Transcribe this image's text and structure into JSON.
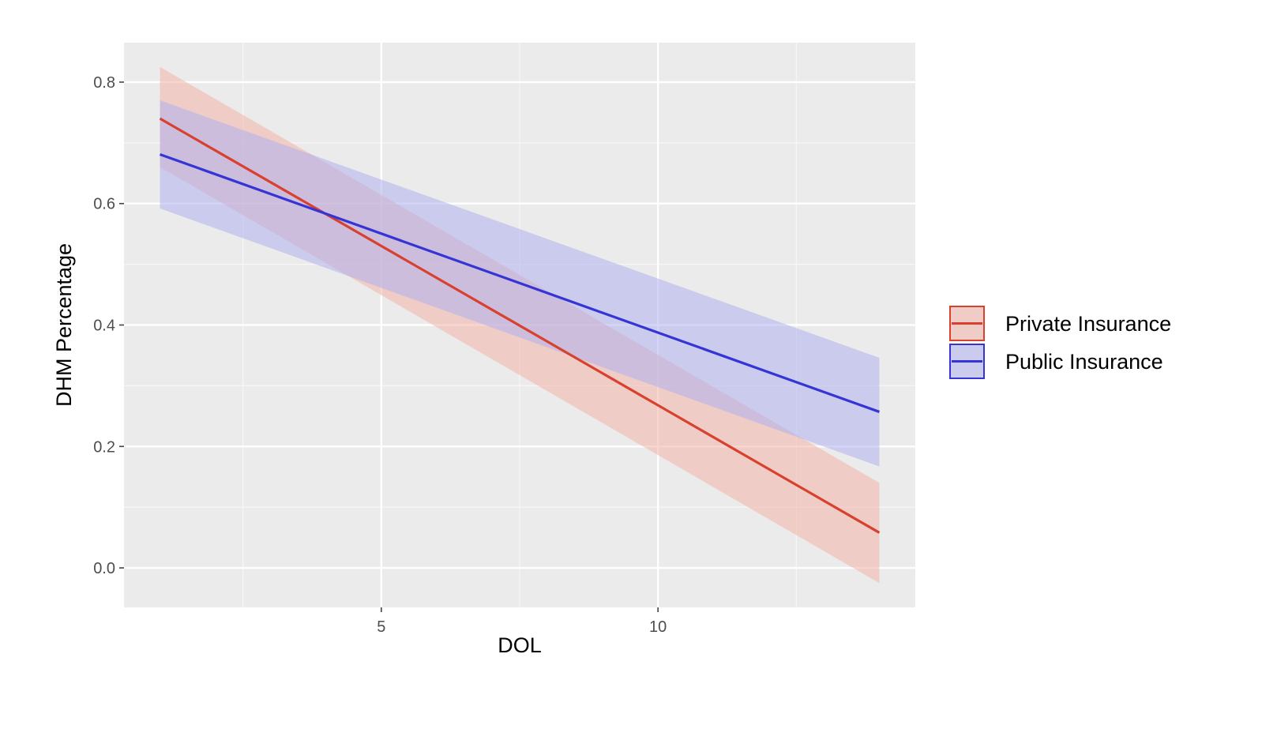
{
  "chart_data": {
    "type": "line",
    "title": "",
    "xlabel": "DOL",
    "ylabel": "DHM Percentage",
    "xlim": [
      0.35,
      14.65
    ],
    "ylim": [
      -0.065,
      0.865
    ],
    "x_ticks": [
      5,
      10
    ],
    "x_tick_labels": [
      "5",
      "10"
    ],
    "x_minor_ticks": [
      2.5,
      7.5,
      12.5
    ],
    "y_ticks": [
      0.0,
      0.2,
      0.4,
      0.6,
      0.8
    ],
    "y_tick_labels": [
      "0.0",
      "0.2",
      "0.4",
      "0.6",
      "0.8"
    ],
    "y_minor_ticks": [
      0.1,
      0.3,
      0.5,
      0.7
    ],
    "grid": true,
    "legend_position": "right",
    "series": [
      {
        "name": "Private Insurance",
        "color": "#d9412f",
        "band_color": "#f2b3a8",
        "x": [
          1,
          14
        ],
        "y": [
          0.74,
          0.058
        ],
        "ci_lower": [
          0.66,
          -0.025
        ],
        "ci_upper": [
          0.825,
          0.14
        ]
      },
      {
        "name": "Public Insurance",
        "color": "#3535d6",
        "band_color": "#b0b0f0",
        "x": [
          1,
          14
        ],
        "y": [
          0.681,
          0.257
        ],
        "ci_lower": [
          0.592,
          0.167
        ],
        "ci_upper": [
          0.77,
          0.346
        ]
      }
    ]
  }
}
